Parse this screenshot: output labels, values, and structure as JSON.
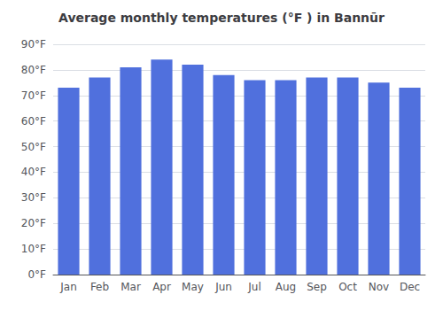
{
  "chart_data": {
    "type": "bar",
    "title": "Average monthly temperatures (°F ) in Bannūr",
    "categories": [
      "Jan",
      "Feb",
      "Mar",
      "Apr",
      "May",
      "Jun",
      "Jul",
      "Aug",
      "Sep",
      "Oct",
      "Nov",
      "Dec"
    ],
    "values": [
      73,
      77,
      81,
      84,
      82,
      78,
      76,
      76,
      77,
      77,
      75,
      73
    ],
    "ylim": [
      0,
      90
    ],
    "yticks": [
      {
        "value": 0,
        "label": "0°F"
      },
      {
        "value": 10,
        "label": "10°F"
      },
      {
        "value": 20,
        "label": "20°F"
      },
      {
        "value": 30,
        "label": "30°F"
      },
      {
        "value": 40,
        "label": "40°F"
      },
      {
        "value": 50,
        "label": "50°F"
      },
      {
        "value": 60,
        "label": "60°F"
      },
      {
        "value": 70,
        "label": "70°F"
      },
      {
        "value": 80,
        "label": "80°F"
      },
      {
        "value": 90,
        "label": "90°F"
      }
    ],
    "grid": true
  }
}
